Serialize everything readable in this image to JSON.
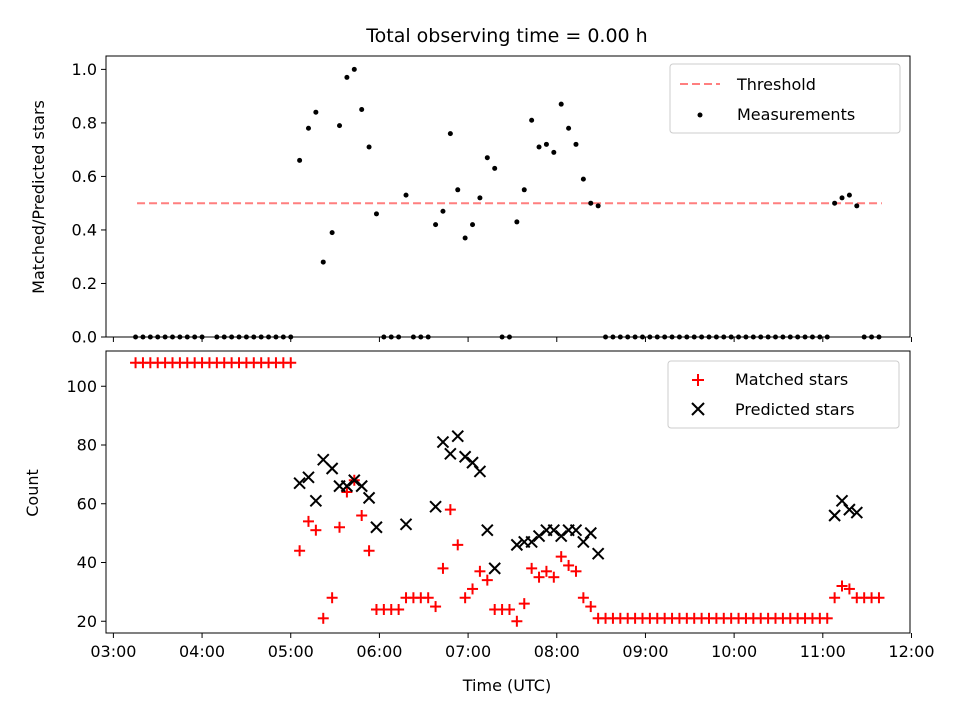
{
  "figure": {
    "title": "Total observing time = 0.00 h"
  },
  "chart_data": [
    {
      "type": "scatter",
      "ylabel": "Matched/Predicted stars",
      "xlabel": "",
      "xlim": [
        "02:55",
        "11:59"
      ],
      "ylim": [
        0,
        1.05
      ],
      "yticks": [
        0.0,
        0.2,
        0.4,
        0.6,
        0.8,
        1.0
      ],
      "ytick_labels": [
        "0.0",
        "0.2",
        "0.4",
        "0.6",
        "0.8",
        "1.0"
      ],
      "legend": {
        "placement": "top-right",
        "entries": [
          "Threshold",
          "Measurements"
        ]
      },
      "threshold": {
        "name": "Threshold",
        "value": 0.5,
        "x_range": [
          "03:16",
          "11:40"
        ],
        "style": "dashed",
        "color": "#ff7f7f"
      },
      "series": [
        {
          "name": "Measurements",
          "marker": "dot",
          "color": "#000000",
          "points": [
            [
              "03:15",
              0
            ],
            [
              "03:20",
              0
            ],
            [
              "03:25",
              0
            ],
            [
              "03:30",
              0
            ],
            [
              "03:35",
              0
            ],
            [
              "03:40",
              0
            ],
            [
              "03:45",
              0
            ],
            [
              "03:50",
              0
            ],
            [
              "03:55",
              0
            ],
            [
              "04:00",
              0
            ],
            [
              "04:10",
              0
            ],
            [
              "04:15",
              0
            ],
            [
              "04:20",
              0
            ],
            [
              "04:25",
              0
            ],
            [
              "04:30",
              0
            ],
            [
              "04:35",
              0
            ],
            [
              "04:40",
              0
            ],
            [
              "04:45",
              0
            ],
            [
              "04:50",
              0
            ],
            [
              "04:55",
              0
            ],
            [
              "05:00",
              0
            ],
            [
              "05:06",
              0.66
            ],
            [
              "05:12",
              0.78
            ],
            [
              "05:17",
              0.84
            ],
            [
              "05:22",
              0.28
            ],
            [
              "05:28",
              0.39
            ],
            [
              "05:33",
              0.79
            ],
            [
              "05:38",
              0.97
            ],
            [
              "05:43",
              1.0
            ],
            [
              "05:48",
              0.85
            ],
            [
              "05:53",
              0.71
            ],
            [
              "05:58",
              0.46
            ],
            [
              "06:03",
              0
            ],
            [
              "06:08",
              0
            ],
            [
              "06:13",
              0
            ],
            [
              "06:18",
              0.53
            ],
            [
              "06:23",
              0
            ],
            [
              "06:28",
              0
            ],
            [
              "06:33",
              0
            ],
            [
              "06:38",
              0.42
            ],
            [
              "06:43",
              0.47
            ],
            [
              "06:48",
              0.76
            ],
            [
              "06:53",
              0.55
            ],
            [
              "06:58",
              0.37
            ],
            [
              "07:03",
              0.42
            ],
            [
              "07:08",
              0.52
            ],
            [
              "07:13",
              0.67
            ],
            [
              "07:18",
              0.63
            ],
            [
              "07:23",
              0
            ],
            [
              "07:28",
              0
            ],
            [
              "07:33",
              0.43
            ],
            [
              "07:38",
              0.55
            ],
            [
              "07:43",
              0.81
            ],
            [
              "07:48",
              0.71
            ],
            [
              "07:53",
              0.72
            ],
            [
              "07:58",
              0.69
            ],
            [
              "08:03",
              0.87
            ],
            [
              "08:08",
              0.78
            ],
            [
              "08:13",
              0.72
            ],
            [
              "08:18",
              0.59
            ],
            [
              "08:23",
              0.5
            ],
            [
              "08:28",
              0.49
            ],
            [
              "08:33",
              0
            ],
            [
              "08:38",
              0
            ],
            [
              "08:43",
              0
            ],
            [
              "08:48",
              0
            ],
            [
              "08:53",
              0
            ],
            [
              "08:58",
              0
            ],
            [
              "09:03",
              0
            ],
            [
              "09:08",
              0
            ],
            [
              "09:13",
              0
            ],
            [
              "09:18",
              0
            ],
            [
              "09:23",
              0
            ],
            [
              "09:28",
              0
            ],
            [
              "09:33",
              0
            ],
            [
              "09:38",
              0
            ],
            [
              "09:43",
              0
            ],
            [
              "09:48",
              0
            ],
            [
              "09:53",
              0
            ],
            [
              "09:58",
              0
            ],
            [
              "10:03",
              0
            ],
            [
              "10:08",
              0
            ],
            [
              "10:13",
              0
            ],
            [
              "10:18",
              0
            ],
            [
              "10:23",
              0
            ],
            [
              "10:28",
              0
            ],
            [
              "10:33",
              0
            ],
            [
              "10:38",
              0
            ],
            [
              "10:43",
              0
            ],
            [
              "10:48",
              0
            ],
            [
              "10:53",
              0
            ],
            [
              "10:58",
              0
            ],
            [
              "11:03",
              0
            ],
            [
              "11:08",
              0.5
            ],
            [
              "11:13",
              0.52
            ],
            [
              "11:18",
              0.53
            ],
            [
              "11:23",
              0.49
            ],
            [
              "11:28",
              0
            ],
            [
              "11:33",
              0
            ],
            [
              "11:38",
              0
            ]
          ]
        }
      ]
    },
    {
      "type": "scatter",
      "ylabel": "Count",
      "xlabel": "Time (UTC)",
      "xlim": [
        "02:55",
        "11:59"
      ],
      "ylim": [
        16,
        112
      ],
      "yticks": [
        20,
        40,
        60,
        80,
        100
      ],
      "ytick_labels": [
        "20",
        "40",
        "60",
        "80",
        "100"
      ],
      "xticks": [
        "03:00",
        "04:00",
        "05:00",
        "06:00",
        "07:00",
        "08:00",
        "09:00",
        "10:00",
        "11:00",
        "12:00"
      ],
      "legend": {
        "placement": "top-right",
        "entries": [
          "Matched stars",
          "Predicted stars"
        ]
      },
      "series": [
        {
          "name": "Matched stars",
          "marker": "plus",
          "color": "#ff0000",
          "points": [
            [
              "03:15",
              108
            ],
            [
              "03:20",
              108
            ],
            [
              "03:25",
              108
            ],
            [
              "03:30",
              108
            ],
            [
              "03:35",
              108
            ],
            [
              "03:40",
              108
            ],
            [
              "03:45",
              108
            ],
            [
              "03:50",
              108
            ],
            [
              "03:55",
              108
            ],
            [
              "04:00",
              108
            ],
            [
              "04:05",
              108
            ],
            [
              "04:10",
              108
            ],
            [
              "04:15",
              108
            ],
            [
              "04:20",
              108
            ],
            [
              "04:25",
              108
            ],
            [
              "04:30",
              108
            ],
            [
              "04:35",
              108
            ],
            [
              "04:40",
              108
            ],
            [
              "04:45",
              108
            ],
            [
              "04:50",
              108
            ],
            [
              "04:55",
              108
            ],
            [
              "05:00",
              108
            ],
            [
              "05:06",
              44
            ],
            [
              "05:12",
              54
            ],
            [
              "05:17",
              51
            ],
            [
              "05:22",
              21
            ],
            [
              "05:28",
              28
            ],
            [
              "05:33",
              52
            ],
            [
              "05:38",
              64
            ],
            [
              "05:43",
              68
            ],
            [
              "05:48",
              56
            ],
            [
              "05:53",
              44
            ],
            [
              "05:58",
              24
            ],
            [
              "06:03",
              24
            ],
            [
              "06:08",
              24
            ],
            [
              "06:13",
              24
            ],
            [
              "06:18",
              28
            ],
            [
              "06:23",
              28
            ],
            [
              "06:28",
              28
            ],
            [
              "06:33",
              28
            ],
            [
              "06:38",
              25
            ],
            [
              "06:43",
              38
            ],
            [
              "06:48",
              58
            ],
            [
              "06:53",
              46
            ],
            [
              "06:58",
              28
            ],
            [
              "07:03",
              31
            ],
            [
              "07:08",
              37
            ],
            [
              "07:13",
              34
            ],
            [
              "07:18",
              24
            ],
            [
              "07:23",
              24
            ],
            [
              "07:28",
              24
            ],
            [
              "07:33",
              20
            ],
            [
              "07:38",
              26
            ],
            [
              "07:43",
              38
            ],
            [
              "07:48",
              35
            ],
            [
              "07:53",
              37
            ],
            [
              "07:58",
              35
            ],
            [
              "08:03",
              42
            ],
            [
              "08:08",
              39
            ],
            [
              "08:13",
              37
            ],
            [
              "08:18",
              28
            ],
            [
              "08:23",
              25
            ],
            [
              "08:28",
              21
            ],
            [
              "08:33",
              21
            ],
            [
              "08:38",
              21
            ],
            [
              "08:43",
              21
            ],
            [
              "08:48",
              21
            ],
            [
              "08:53",
              21
            ],
            [
              "08:58",
              21
            ],
            [
              "09:03",
              21
            ],
            [
              "09:08",
              21
            ],
            [
              "09:13",
              21
            ],
            [
              "09:18",
              21
            ],
            [
              "09:23",
              21
            ],
            [
              "09:28",
              21
            ],
            [
              "09:33",
              21
            ],
            [
              "09:38",
              21
            ],
            [
              "09:43",
              21
            ],
            [
              "09:48",
              21
            ],
            [
              "09:53",
              21
            ],
            [
              "09:58",
              21
            ],
            [
              "10:03",
              21
            ],
            [
              "10:08",
              21
            ],
            [
              "10:13",
              21
            ],
            [
              "10:18",
              21
            ],
            [
              "10:23",
              21
            ],
            [
              "10:28",
              21
            ],
            [
              "10:33",
              21
            ],
            [
              "10:38",
              21
            ],
            [
              "10:43",
              21
            ],
            [
              "10:48",
              21
            ],
            [
              "10:53",
              21
            ],
            [
              "10:58",
              21
            ],
            [
              "11:03",
              21
            ],
            [
              "11:08",
              28
            ],
            [
              "11:13",
              32
            ],
            [
              "11:18",
              31
            ],
            [
              "11:23",
              28
            ],
            [
              "11:28",
              28
            ],
            [
              "11:33",
              28
            ],
            [
              "11:38",
              28
            ]
          ]
        },
        {
          "name": "Predicted stars",
          "marker": "x",
          "color": "#000000",
          "points": [
            [
              "05:06",
              67
            ],
            [
              "05:12",
              69
            ],
            [
              "05:17",
              61
            ],
            [
              "05:22",
              75
            ],
            [
              "05:28",
              72
            ],
            [
              "05:33",
              66
            ],
            [
              "05:38",
              66
            ],
            [
              "05:43",
              68
            ],
            [
              "05:48",
              66
            ],
            [
              "05:53",
              62
            ],
            [
              "05:58",
              52
            ],
            [
              "06:18",
              53
            ],
            [
              "06:38",
              59
            ],
            [
              "06:43",
              81
            ],
            [
              "06:48",
              77
            ],
            [
              "06:53",
              83
            ],
            [
              "06:58",
              76
            ],
            [
              "07:03",
              74
            ],
            [
              "07:08",
              71
            ],
            [
              "07:13",
              51
            ],
            [
              "07:18",
              38
            ],
            [
              "07:33",
              46
            ],
            [
              "07:38",
              47
            ],
            [
              "07:43",
              47
            ],
            [
              "07:48",
              49
            ],
            [
              "07:53",
              51
            ],
            [
              "07:58",
              51
            ],
            [
              "08:03",
              49
            ],
            [
              "08:08",
              51
            ],
            [
              "08:13",
              51
            ],
            [
              "08:18",
              47
            ],
            [
              "08:23",
              50
            ],
            [
              "08:28",
              43
            ],
            [
              "11:08",
              56
            ],
            [
              "11:13",
              61
            ],
            [
              "11:18",
              58
            ],
            [
              "11:23",
              57
            ]
          ]
        }
      ]
    }
  ]
}
